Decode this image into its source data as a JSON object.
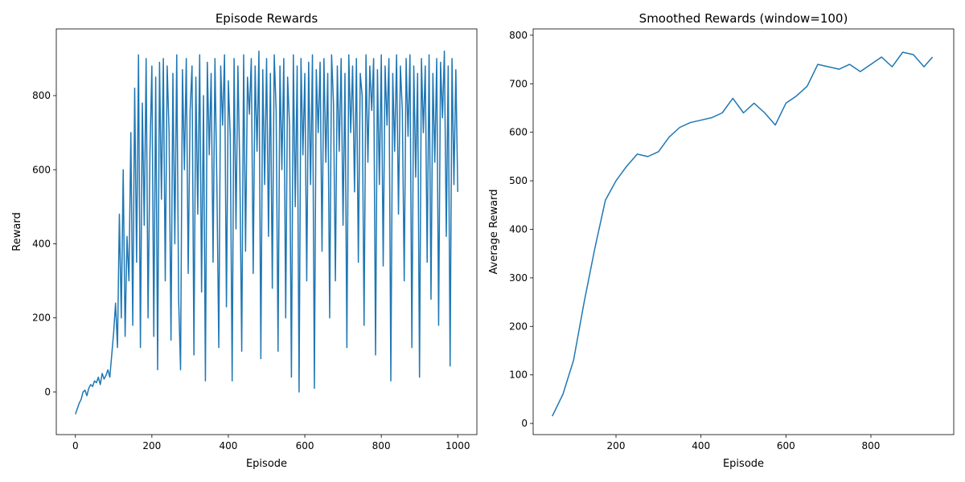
{
  "chart_data": [
    {
      "type": "line",
      "title": "Episode Rewards",
      "x_label": "Episode",
      "y_label": "Reward",
      "color": "#1f77b4",
      "xlim": [
        -50,
        1050
      ],
      "ylim": [
        -115,
        980
      ],
      "xticks": [
        0,
        200,
        400,
        600,
        800,
        1000
      ],
      "yticks": [
        0,
        200,
        400,
        600,
        800
      ],
      "x": [
        0,
        5,
        10,
        15,
        20,
        25,
        30,
        35,
        40,
        45,
        50,
        55,
        60,
        65,
        70,
        75,
        80,
        85,
        90,
        95,
        100,
        105,
        110,
        115,
        120,
        125,
        130,
        135,
        140,
        145,
        150,
        155,
        160,
        165,
        170,
        175,
        180,
        185,
        190,
        195,
        200,
        205,
        210,
        215,
        220,
        225,
        230,
        235,
        240,
        245,
        250,
        255,
        260,
        265,
        270,
        275,
        280,
        285,
        290,
        295,
        300,
        305,
        310,
        315,
        320,
        325,
        330,
        335,
        340,
        345,
        350,
        355,
        360,
        365,
        370,
        375,
        380,
        385,
        390,
        395,
        400,
        405,
        410,
        415,
        420,
        425,
        430,
        435,
        440,
        445,
        450,
        455,
        460,
        465,
        470,
        475,
        480,
        485,
        490,
        495,
        500,
        505,
        510,
        515,
        520,
        525,
        530,
        535,
        540,
        545,
        550,
        555,
        560,
        565,
        570,
        575,
        580,
        585,
        590,
        595,
        600,
        605,
        610,
        615,
        620,
        625,
        630,
        635,
        640,
        645,
        650,
        655,
        660,
        665,
        670,
        675,
        680,
        685,
        690,
        695,
        700,
        705,
        710,
        715,
        720,
        725,
        730,
        735,
        740,
        745,
        750,
        755,
        760,
        765,
        770,
        775,
        780,
        785,
        790,
        795,
        800,
        805,
        810,
        815,
        820,
        825,
        830,
        835,
        840,
        845,
        850,
        855,
        860,
        865,
        870,
        875,
        880,
        885,
        890,
        895,
        900,
        905,
        910,
        915,
        920,
        925,
        930,
        935,
        940,
        945,
        950,
        955,
        960,
        965,
        970,
        975,
        980,
        985,
        990,
        995,
        1000
      ],
      "values": [
        -60,
        -45,
        -30,
        -20,
        0,
        5,
        -10,
        10,
        20,
        15,
        30,
        25,
        40,
        20,
        50,
        35,
        45,
        60,
        40,
        100,
        160,
        240,
        120,
        480,
        200,
        600,
        150,
        420,
        300,
        700,
        180,
        820,
        350,
        910,
        120,
        780,
        450,
        900,
        200,
        650,
        880,
        150,
        850,
        60,
        890,
        520,
        900,
        300,
        880,
        700,
        140,
        860,
        400,
        910,
        250,
        60,
        870,
        600,
        900,
        320,
        760,
        880,
        100,
        850,
        480,
        910,
        270,
        800,
        30,
        890,
        640,
        860,
        350,
        900,
        560,
        120,
        880,
        720,
        910,
        230,
        840,
        690,
        30,
        900,
        440,
        880,
        600,
        110,
        910,
        380,
        850,
        750,
        900,
        320,
        880,
        650,
        920,
        90,
        870,
        560,
        900,
        420,
        860,
        280,
        910,
        760,
        110,
        880,
        600,
        900,
        200,
        850,
        720,
        40,
        910,
        500,
        880,
        0,
        900,
        640,
        860,
        300,
        890,
        560,
        910,
        10,
        870,
        700,
        890,
        380,
        900,
        620,
        860,
        200,
        910,
        780,
        300,
        880,
        650,
        900,
        450,
        860,
        120,
        910,
        700,
        880,
        540,
        900,
        350,
        860,
        800,
        180,
        910,
        620,
        880,
        760,
        900,
        100,
        870,
        560,
        910,
        340,
        880,
        720,
        900,
        30,
        860,
        650,
        910,
        480,
        880,
        760,
        300,
        900,
        690,
        910,
        120,
        880,
        580,
        860,
        40,
        900,
        700,
        880,
        350,
        910,
        250,
        860,
        620,
        900,
        180,
        890,
        740,
        920,
        420,
        880,
        70,
        900,
        560,
        870,
        540
      ]
    },
    {
      "type": "line",
      "title": "Smoothed Rewards (window=100)",
      "x_label": "Episode",
      "y_label": "Average Reward",
      "color": "#1f77b4",
      "xlim": [
        5,
        995
      ],
      "ylim": [
        -23,
        813
      ],
      "xticks": [
        200,
        400,
        600,
        800
      ],
      "yticks": [
        0,
        100,
        200,
        300,
        400,
        500,
        600,
        700,
        800
      ],
      "x": [
        50,
        75,
        100,
        125,
        150,
        175,
        200,
        225,
        250,
        275,
        300,
        325,
        350,
        375,
        400,
        425,
        450,
        475,
        500,
        525,
        550,
        575,
        600,
        625,
        650,
        675,
        700,
        725,
        750,
        775,
        800,
        825,
        850,
        875,
        900,
        925,
        945
      ],
      "values": [
        15,
        60,
        130,
        250,
        360,
        460,
        500,
        530,
        555,
        550,
        560,
        590,
        610,
        620,
        625,
        630,
        640,
        670,
        640,
        660,
        640,
        615,
        660,
        675,
        695,
        740,
        735,
        730,
        740,
        725,
        740,
        755,
        735,
        765,
        760,
        735,
        755
      ]
    }
  ]
}
